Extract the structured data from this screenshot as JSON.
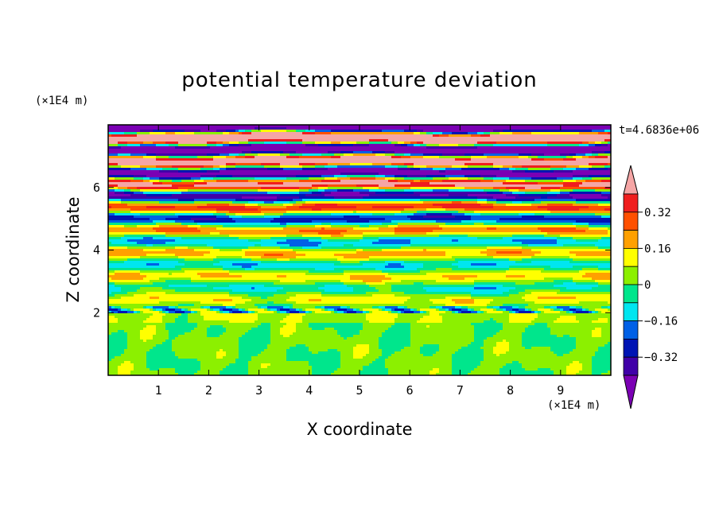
{
  "chart_data": {
    "type": "heatmap",
    "title": "potential temperature deviation",
    "xlabel": "X coordinate",
    "ylabel": "Z coordinate",
    "x_unit": "(×1E4 m)",
    "y_unit": "(×1E4 m)",
    "time_label": "t=4.6836e+06",
    "xlim": [
      0,
      10
    ],
    "ylim": [
      0,
      8
    ],
    "x_ticks": [
      "1",
      "2",
      "3",
      "4",
      "5",
      "6",
      "7",
      "8",
      "9"
    ],
    "y_ticks": [
      "2",
      "4",
      "6"
    ],
    "colorbar": {
      "levels": [
        -0.4,
        -0.32,
        -0.24,
        -0.16,
        -0.08,
        0,
        0.08,
        0.16,
        0.24,
        0.32,
        0.4
      ],
      "tick_labels": [
        "0.32",
        "0.16",
        "0",
        "−0.16",
        "−0.32"
      ],
      "tick_values": [
        0.32,
        0.16,
        0,
        -0.16,
        -0.32
      ],
      "colors": [
        "#7b00b4",
        "#4000a8",
        "#0014b4",
        "#0060e6",
        "#00e6f0",
        "#00e68c",
        "#8cf000",
        "#ffff00",
        "#ffa000",
        "#ff5000",
        "#f01e1e",
        "#f5a5a5"
      ]
    }
  }
}
